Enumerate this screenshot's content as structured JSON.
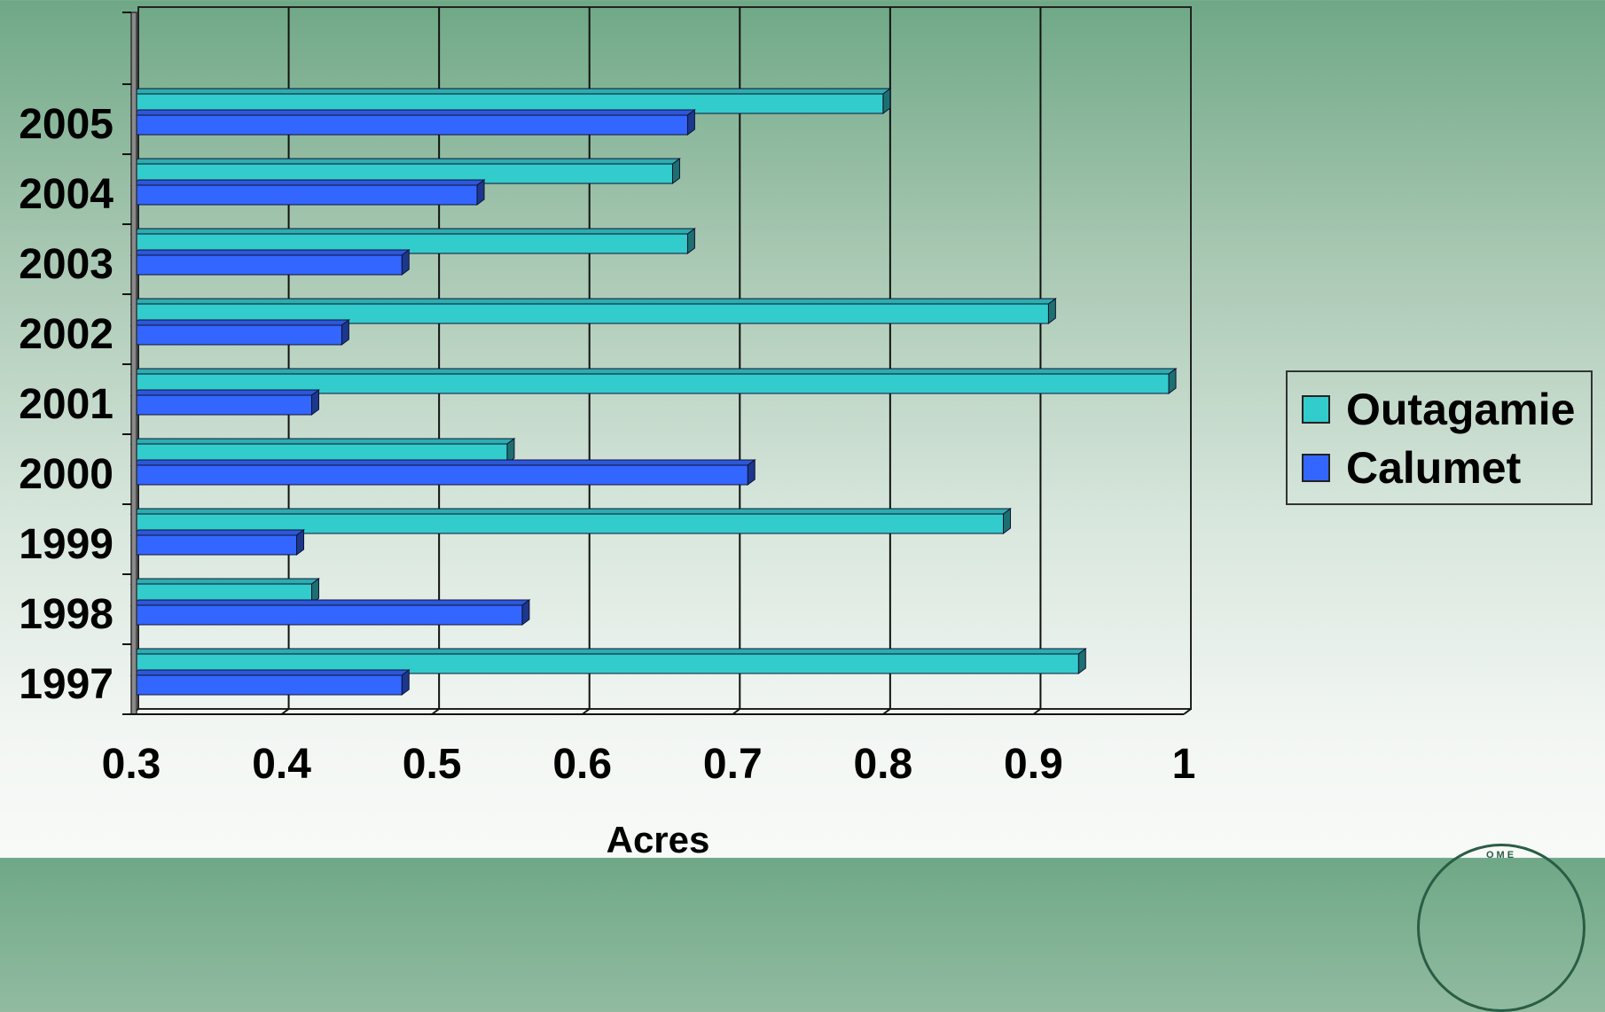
{
  "chart_data": {
    "type": "bar",
    "orientation": "horizontal",
    "categories": [
      "1997",
      "1998",
      "1999",
      "2000",
      "2001",
      "2002",
      "2003",
      "2004",
      "2005"
    ],
    "series": [
      {
        "name": "Outagamie",
        "color": "#33cccc",
        "values": [
          0.93,
          0.42,
          0.88,
          0.55,
          0.99,
          0.91,
          0.67,
          0.66,
          0.8
        ]
      },
      {
        "name": "Calumet",
        "color": "#3366ff",
        "values": [
          0.48,
          0.56,
          0.41,
          0.71,
          0.42,
          0.44,
          0.48,
          0.53,
          0.67
        ]
      }
    ],
    "xlabel": "Acres",
    "ylabel": "",
    "xlim": [
      0.3,
      1
    ],
    "xticks": [
      "0.3",
      "0.4",
      "0.5",
      "0.6",
      "0.7",
      "0.8",
      "0.9",
      "1"
    ],
    "grid": true,
    "legend_position": "right"
  },
  "legend": {
    "items": [
      {
        "label": "Outagamie",
        "color": "#33cccc"
      },
      {
        "label": "Calumet",
        "color": "#3366ff"
      }
    ]
  }
}
